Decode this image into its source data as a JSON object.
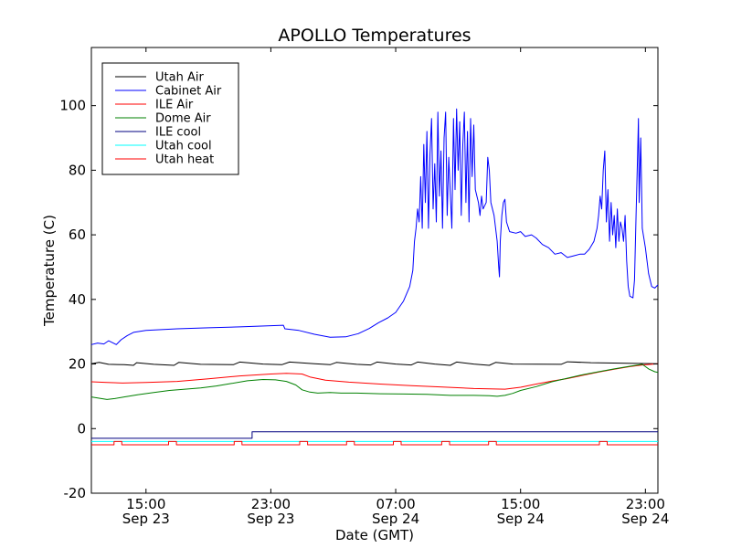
{
  "chart_data": {
    "type": "line",
    "title": "APOLLO Temperatures",
    "xlabel": "Date (GMT)",
    "ylabel": "Temperature (C)",
    "xunit": "hours since Sep 23 00:00 GMT",
    "xlim": [
      11.5,
      47.8
    ],
    "ylim": [
      -20,
      118
    ],
    "xticks": [
      {
        "x": 15,
        "line1": "15:00",
        "line2": "Sep 23"
      },
      {
        "x": 23,
        "line1": "23:00",
        "line2": "Sep 23"
      },
      {
        "x": 31,
        "line1": "07:00",
        "line2": "Sep 24"
      },
      {
        "x": 39,
        "line1": "15:00",
        "line2": "Sep 24"
      },
      {
        "x": 47,
        "line1": "23:00",
        "line2": "Sep 24"
      }
    ],
    "yticks": [
      {
        "y": -20,
        "label": "-20"
      },
      {
        "y": 0,
        "label": "0"
      },
      {
        "y": 20,
        "label": "20"
      },
      {
        "y": 40,
        "label": "40"
      },
      {
        "y": 60,
        "label": "60"
      },
      {
        "y": 80,
        "label": "80"
      },
      {
        "y": 100,
        "label": "100"
      }
    ],
    "legend_position": "top-left",
    "series": [
      {
        "name": "Utah Air",
        "color": "#000000",
        "points": [
          [
            11.5,
            20.1
          ],
          [
            12.0,
            20.5
          ],
          [
            12.6,
            19.9
          ],
          [
            13.6,
            19.8
          ],
          [
            14.2,
            19.6
          ],
          [
            14.4,
            20.4
          ],
          [
            15.5,
            19.9
          ],
          [
            16.8,
            19.6
          ],
          [
            17.1,
            20.5
          ],
          [
            18.5,
            19.9
          ],
          [
            20.6,
            19.8
          ],
          [
            21.0,
            20.6
          ],
          [
            22.5,
            20.0
          ],
          [
            23.7,
            19.8
          ],
          [
            24.2,
            20.6
          ],
          [
            25.8,
            20.1
          ],
          [
            26.8,
            19.8
          ],
          [
            27.2,
            20.5
          ],
          [
            28.5,
            19.9
          ],
          [
            29.4,
            19.7
          ],
          [
            29.8,
            20.6
          ],
          [
            31.0,
            20.0
          ],
          [
            32.0,
            19.7
          ],
          [
            32.4,
            20.6
          ],
          [
            33.5,
            20.0
          ],
          [
            34.5,
            19.6
          ],
          [
            34.9,
            20.6
          ],
          [
            36.0,
            20.0
          ],
          [
            37.0,
            19.6
          ],
          [
            37.4,
            20.5
          ],
          [
            38.5,
            20.0
          ],
          [
            41.6,
            19.9
          ],
          [
            42.0,
            20.7
          ],
          [
            43.5,
            20.4
          ],
          [
            47.8,
            20.1
          ]
        ]
      },
      {
        "name": "Cabinet Air",
        "color": "#0000ff",
        "points": [
          [
            11.5,
            26.0
          ],
          [
            11.9,
            26.5
          ],
          [
            12.3,
            26.2
          ],
          [
            12.6,
            27.2
          ],
          [
            12.9,
            26.5
          ],
          [
            13.1,
            26.0
          ],
          [
            13.4,
            27.5
          ],
          [
            13.8,
            28.8
          ],
          [
            14.2,
            29.8
          ],
          [
            15.0,
            30.4
          ],
          [
            17.0,
            30.9
          ],
          [
            19.0,
            31.2
          ],
          [
            21.0,
            31.5
          ],
          [
            23.8,
            32.0
          ],
          [
            23.9,
            30.9
          ],
          [
            24.8,
            30.4
          ],
          [
            25.8,
            29.2
          ],
          [
            26.8,
            28.3
          ],
          [
            27.8,
            28.4
          ],
          [
            28.6,
            29.4
          ],
          [
            29.3,
            31.0
          ],
          [
            29.9,
            32.8
          ],
          [
            30.5,
            34.3
          ],
          [
            31.0,
            36.0
          ],
          [
            31.5,
            39.5
          ],
          [
            31.9,
            44.0
          ],
          [
            32.1,
            49.0
          ],
          [
            32.2,
            58.0
          ],
          [
            32.3,
            62.0
          ],
          [
            32.4,
            68.0
          ],
          [
            32.5,
            64.0
          ],
          [
            32.6,
            78.0
          ],
          [
            32.7,
            62.0
          ],
          [
            32.8,
            88.0
          ],
          [
            32.9,
            70.0
          ],
          [
            33.0,
            92.0
          ],
          [
            33.1,
            62.0
          ],
          [
            33.2,
            85.0
          ],
          [
            33.3,
            96.0
          ],
          [
            33.4,
            68.0
          ],
          [
            33.5,
            82.0
          ],
          [
            33.6,
            64.0
          ],
          [
            33.7,
            98.0
          ],
          [
            33.8,
            72.0
          ],
          [
            33.9,
            86.0
          ],
          [
            34.0,
            62.0
          ],
          [
            34.1,
            90.0
          ],
          [
            34.2,
            98.0
          ],
          [
            34.3,
            66.0
          ],
          [
            34.4,
            84.0
          ],
          [
            34.6,
            62.0
          ],
          [
            34.7,
            96.0
          ],
          [
            34.8,
            74.0
          ],
          [
            34.9,
            99.0
          ],
          [
            35.0,
            80.0
          ],
          [
            35.1,
            95.0
          ],
          [
            35.2,
            66.0
          ],
          [
            35.3,
            88.0
          ],
          [
            35.4,
            98.0
          ],
          [
            35.5,
            70.0
          ],
          [
            35.6,
            92.0
          ],
          [
            35.7,
            64.0
          ],
          [
            35.8,
            96.0
          ],
          [
            35.9,
            78.0
          ],
          [
            36.0,
            94.0
          ],
          [
            36.1,
            74.0
          ],
          [
            36.3,
            70.0
          ],
          [
            36.4,
            66.0
          ],
          [
            36.5,
            72.0
          ],
          [
            36.6,
            68.0
          ],
          [
            36.8,
            70.0
          ],
          [
            36.9,
            84.0
          ],
          [
            37.0,
            80.0
          ],
          [
            37.1,
            70.0
          ],
          [
            37.3,
            66.0
          ],
          [
            37.4,
            62.0
          ],
          [
            37.5,
            58.0
          ],
          [
            37.6,
            50.0
          ],
          [
            37.65,
            47.0
          ],
          [
            37.7,
            58.0
          ],
          [
            37.8,
            66.0
          ],
          [
            37.9,
            70.0
          ],
          [
            38.0,
            71.0
          ],
          [
            38.1,
            64.0
          ],
          [
            38.3,
            61.0
          ],
          [
            38.7,
            60.5
          ],
          [
            39.0,
            61.0
          ],
          [
            39.3,
            59.5
          ],
          [
            39.7,
            60.0
          ],
          [
            40.0,
            59.0
          ],
          [
            40.4,
            57.0
          ],
          [
            40.8,
            56.0
          ],
          [
            41.2,
            54.0
          ],
          [
            41.6,
            54.5
          ],
          [
            42.0,
            53.0
          ],
          [
            42.4,
            53.5
          ],
          [
            42.8,
            54.0
          ],
          [
            43.1,
            54.0
          ],
          [
            43.4,
            55.5
          ],
          [
            43.7,
            58.0
          ],
          [
            43.9,
            62.0
          ],
          [
            44.0,
            66.0
          ],
          [
            44.1,
            72.0
          ],
          [
            44.2,
            68.0
          ],
          [
            44.3,
            80.0
          ],
          [
            44.4,
            86.0
          ],
          [
            44.5,
            64.0
          ],
          [
            44.6,
            74.0
          ],
          [
            44.7,
            58.0
          ],
          [
            44.8,
            70.0
          ],
          [
            44.9,
            60.0
          ],
          [
            45.0,
            66.0
          ],
          [
            45.1,
            56.0
          ],
          [
            45.2,
            68.0
          ],
          [
            45.3,
            58.0
          ],
          [
            45.4,
            64.0
          ],
          [
            45.5,
            62.0
          ],
          [
            45.6,
            58.0
          ],
          [
            45.7,
            66.0
          ],
          [
            45.8,
            52.0
          ],
          [
            45.9,
            44.0
          ],
          [
            46.0,
            41.0
          ],
          [
            46.2,
            40.5
          ],
          [
            46.3,
            46.0
          ],
          [
            46.4,
            66.0
          ],
          [
            46.5,
            85.0
          ],
          [
            46.55,
            96.0
          ],
          [
            46.6,
            70.0
          ],
          [
            46.7,
            90.0
          ],
          [
            46.8,
            62.0
          ],
          [
            47.0,
            56.0
          ],
          [
            47.2,
            48.0
          ],
          [
            47.4,
            44.0
          ],
          [
            47.6,
            43.5
          ],
          [
            47.8,
            44.5
          ]
        ]
      },
      {
        "name": "ILE Air",
        "color": "#ff0000",
        "points": [
          [
            11.5,
            14.5
          ],
          [
            12.5,
            14.3
          ],
          [
            13.5,
            14.1
          ],
          [
            15.0,
            14.3
          ],
          [
            17.0,
            14.6
          ],
          [
            19.0,
            15.4
          ],
          [
            21.0,
            16.3
          ],
          [
            23.0,
            16.9
          ],
          [
            24.0,
            17.1
          ],
          [
            25.0,
            16.9
          ],
          [
            25.5,
            16.0
          ],
          [
            26.5,
            15.0
          ],
          [
            28.0,
            14.4
          ],
          [
            30.0,
            13.8
          ],
          [
            32.0,
            13.3
          ],
          [
            34.0,
            12.9
          ],
          [
            36.0,
            12.4
          ],
          [
            38.0,
            12.2
          ],
          [
            39.0,
            12.8
          ],
          [
            40.0,
            13.8
          ],
          [
            41.0,
            14.7
          ],
          [
            42.0,
            15.5
          ],
          [
            43.0,
            16.5
          ],
          [
            44.0,
            17.5
          ],
          [
            45.0,
            18.4
          ],
          [
            46.0,
            19.2
          ],
          [
            46.8,
            19.7
          ],
          [
            47.8,
            20.1
          ]
        ]
      },
      {
        "name": "Dome Air",
        "color": "#008000",
        "points": [
          [
            11.5,
            9.8
          ],
          [
            12.0,
            9.4
          ],
          [
            12.5,
            9.0
          ],
          [
            13.0,
            9.3
          ],
          [
            13.6,
            9.8
          ],
          [
            14.5,
            10.5
          ],
          [
            15.5,
            11.2
          ],
          [
            16.5,
            11.8
          ],
          [
            17.5,
            12.2
          ],
          [
            18.5,
            12.6
          ],
          [
            19.5,
            13.2
          ],
          [
            20.5,
            14.0
          ],
          [
            21.5,
            14.8
          ],
          [
            22.5,
            15.2
          ],
          [
            23.3,
            15.1
          ],
          [
            24.0,
            14.6
          ],
          [
            24.6,
            13.5
          ],
          [
            25.0,
            12.0
          ],
          [
            25.5,
            11.3
          ],
          [
            26.0,
            11.0
          ],
          [
            26.8,
            11.2
          ],
          [
            27.5,
            11.0
          ],
          [
            28.5,
            11.0
          ],
          [
            30.0,
            10.8
          ],
          [
            31.5,
            10.7
          ],
          [
            33.0,
            10.6
          ],
          [
            34.5,
            10.3
          ],
          [
            36.0,
            10.3
          ],
          [
            37.0,
            10.2
          ],
          [
            37.5,
            10.0
          ],
          [
            38.0,
            10.3
          ],
          [
            38.5,
            10.9
          ],
          [
            39.0,
            11.8
          ],
          [
            40.0,
            13.0
          ],
          [
            41.0,
            14.5
          ],
          [
            42.0,
            15.6
          ],
          [
            43.0,
            16.7
          ],
          [
            44.0,
            17.6
          ],
          [
            45.0,
            18.5
          ],
          [
            46.0,
            19.3
          ],
          [
            46.8,
            19.9
          ],
          [
            47.2,
            18.5
          ],
          [
            47.6,
            17.6
          ],
          [
            47.8,
            17.4
          ]
        ]
      },
      {
        "name": "ILE cool",
        "color": "#000080",
        "points": [
          [
            11.5,
            -3.0
          ],
          [
            21.8,
            -3.0
          ],
          [
            21.8,
            -1.0
          ],
          [
            47.8,
            -1.0
          ]
        ]
      },
      {
        "name": "Utah cool",
        "color": "#00ffff",
        "points": [
          [
            11.5,
            -4.0
          ],
          [
            47.8,
            -4.0
          ]
        ]
      },
      {
        "name": "Utah heat",
        "color": "#ff0000",
        "pulse_baseline": -5.0,
        "pulse_high": -4.0,
        "pulse_centers": [
          13.2,
          16.7,
          20.9,
          25.1,
          28.1,
          31.1,
          34.2,
          37.2,
          44.3
        ]
      }
    ]
  }
}
